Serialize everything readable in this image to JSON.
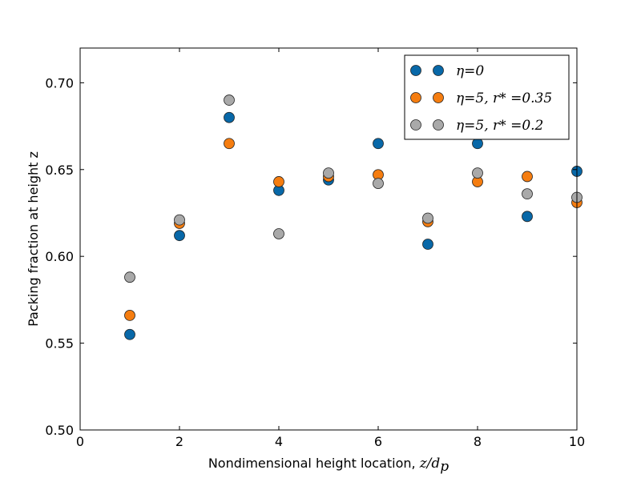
{
  "chart_data": {
    "type": "scatter",
    "title": "",
    "xlabel": "Nondimensional height location, ",
    "xlabel_math": "z/d",
    "xlabel_math_sub": "p",
    "ylabel": "Packing fraction at height z",
    "xlim": [
      0,
      10
    ],
    "ylim": [
      0.5,
      0.72
    ],
    "xticks": [
      0,
      2,
      4,
      6,
      8,
      10
    ],
    "xtick_labels": [
      "0",
      "2",
      "4",
      "6",
      "8",
      "10"
    ],
    "yticks": [
      0.5,
      0.55,
      0.6,
      0.65,
      0.7
    ],
    "ytick_labels": [
      "0.50",
      "0.55",
      "0.60",
      "0.65",
      "0.70"
    ],
    "grid": false,
    "legend_position": "top-right",
    "series": [
      {
        "name": "η=0",
        "color": "#0868a8",
        "x": [
          1,
          2,
          3,
          4,
          5,
          6,
          7,
          8,
          9,
          10
        ],
        "y": [
          0.555,
          0.612,
          0.68,
          0.638,
          0.644,
          0.665,
          0.607,
          0.665,
          0.623,
          0.649
        ]
      },
      {
        "name": "η=5, r* =0.35",
        "color": "#f57d10",
        "x": [
          1,
          2,
          3,
          4,
          5,
          6,
          7,
          8,
          9,
          10
        ],
        "y": [
          0.566,
          0.619,
          0.665,
          0.643,
          0.646,
          0.647,
          0.62,
          0.643,
          0.646,
          0.631
        ]
      },
      {
        "name": "η=5, r* =0.2",
        "color": "#a9a9a9",
        "x": [
          1,
          2,
          3,
          4,
          5,
          6,
          7,
          8,
          9,
          10
        ],
        "y": [
          0.588,
          0.621,
          0.69,
          0.613,
          0.648,
          0.642,
          0.622,
          0.648,
          0.636,
          0.634
        ]
      }
    ]
  }
}
